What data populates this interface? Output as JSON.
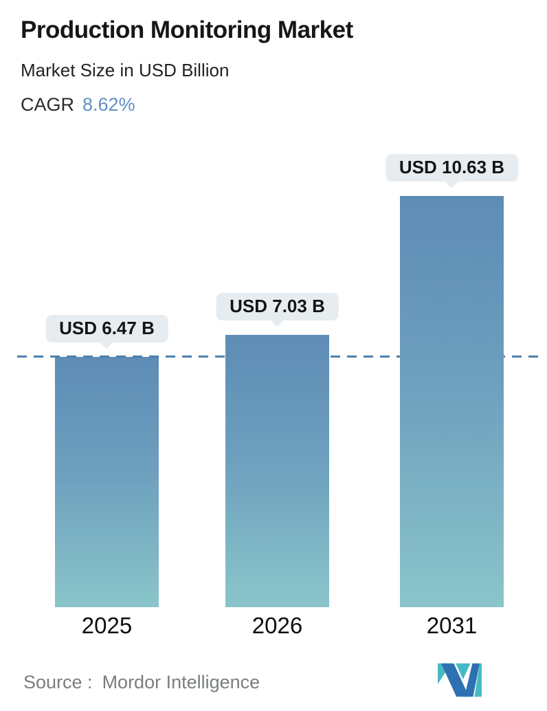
{
  "header": {
    "title": "Production Monitoring Market",
    "subtitle": "Market Size in USD Billion",
    "cagr_label": "CAGR",
    "cagr_value": "8.62%"
  },
  "chart_data": {
    "type": "bar",
    "title": "Production Monitoring Market",
    "subtitle": "Market Size in USD Billion",
    "unit": "USD Billion",
    "cagr_percent": 8.62,
    "categories": [
      "2025",
      "2026",
      "2031"
    ],
    "values": [
      6.47,
      7.03,
      10.63
    ],
    "value_labels": [
      "USD 6.47 B",
      "USD 7.03 B",
      "USD 10.63 B"
    ],
    "xlabel": "",
    "ylabel": "",
    "ylim": [
      0,
      11.5
    ],
    "grid": false,
    "legend": "none",
    "reference_line": {
      "style": "dashed",
      "at_value": 6.47,
      "color": "#4d80ab"
    },
    "colors": {
      "bar_gradient_top": "#5e8cb5",
      "bar_gradient_bottom": "#8ac5ca",
      "label_bubble_bg": "#e6ecef",
      "accent_blue": "#6090c1"
    }
  },
  "footer": {
    "source_label": "Source :",
    "source_value": "Mordor Intelligence",
    "logo_name": "mordor-intelligence-logo",
    "logo_colors": {
      "blue": "#2e71b2",
      "teal": "#46bac4"
    }
  }
}
